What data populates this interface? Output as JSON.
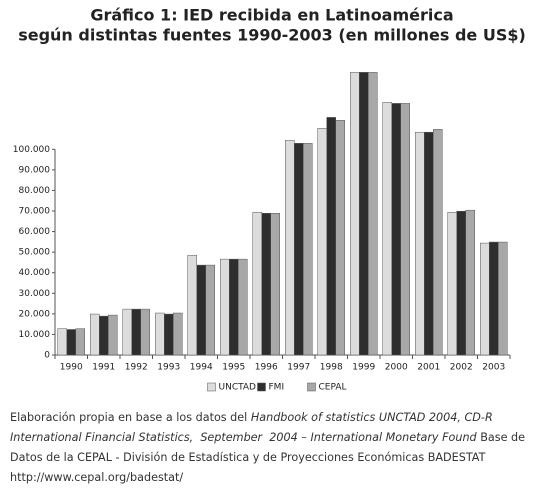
{
  "chart_data": {
    "type": "bar",
    "title": "Gráfico 1: IED recibida en Latinoamérica",
    "subtitle": "según distintas fuentes 1990-2003 (en millones de US$)",
    "categories": [
      "1990",
      "1991",
      "1992",
      "1993",
      "1994",
      "1995",
      "1996",
      "1997",
      "1998",
      "1999",
      "2000",
      "2001",
      "2002",
      "2003"
    ],
    "series": [
      {
        "name": "UNCTAD",
        "color": "#dcdcdc",
        "values": [
          12800,
          19900,
          22300,
          20400,
          48500,
          46600,
          69400,
          104400,
          110200,
          137400,
          122800,
          108300,
          69400,
          54400
        ]
      },
      {
        "name": "FMI",
        "color": "#2e2e2e",
        "values": [
          12400,
          18900,
          22300,
          19900,
          43700,
          46600,
          68900,
          102900,
          115500,
          137400,
          122300,
          108300,
          69900,
          54900
        ]
      },
      {
        "name": "CEPAL",
        "color": "#a8a8a8",
        "values": [
          12800,
          19400,
          22300,
          20400,
          43700,
          46600,
          68900,
          102900,
          114100,
          137400,
          122300,
          109700,
          70400,
          54900
        ]
      }
    ],
    "ylim": [
      0,
      140000
    ],
    "yticks": [
      0,
      {
        "value": 10000,
        "label": "10.000"
      },
      {
        "value": 20000,
        "label": "20.000"
      },
      {
        "value": 30000,
        "label": "30.000"
      },
      {
        "value": 40000,
        "label": "40.000"
      },
      {
        "value": 50000,
        "label": "50.000"
      },
      {
        "value": 60000,
        "label": "60.000"
      },
      {
        "value": 70000,
        "label": "70.000"
      },
      {
        "value": 80000,
        "label": "80.000"
      },
      {
        "value": 90000,
        "label": "90.000"
      },
      {
        "value": 100000,
        "label": "100.000"
      }
    ],
    "grid": false,
    "legend": "bottom",
    "source": [
      "Elaboración propia en base a los datos del",
      "Handbook of statistics UNCTAD 2004, CD-R International Financial Statistics,  September  2004 – International Monetary Found",
      "Base de Datos de la CEPAL - División de Estadística y de Proyecciones Económicas BADESTAT",
      "http://www.cepal.org/badestat/"
    ]
  }
}
